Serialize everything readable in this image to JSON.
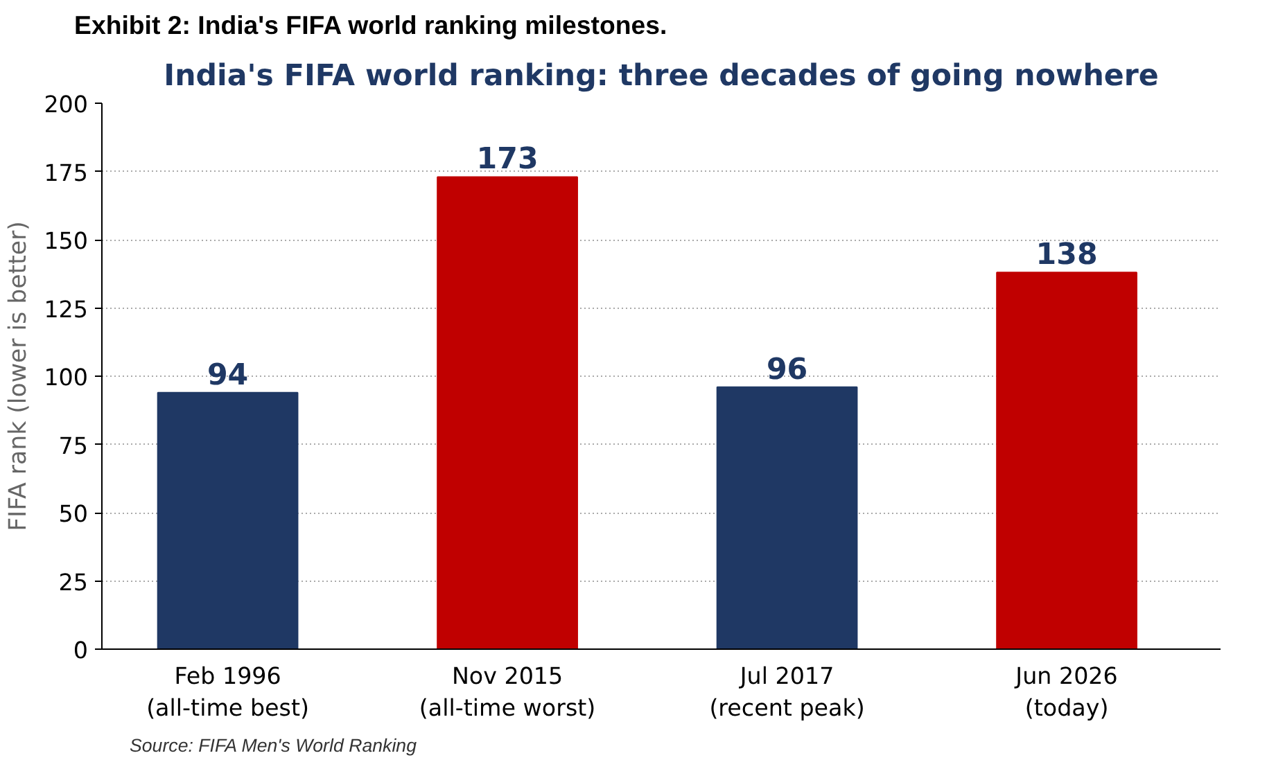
{
  "chart_data": {
    "type": "bar",
    "title": "India's FIFA world ranking: three decades of going nowhere",
    "ylabel": "FIFA rank (lower is better)",
    "annotations": [
      "Exhibit 2: India's FIFA world ranking milestones.",
      "Source: FIFA Men's World Ranking"
    ],
    "categories": [
      "Feb 1996\n(all-time best)",
      "Nov 2015\n(all-time worst)",
      "Jul 2017\n(recent peak)",
      "Jun 2026\n(today)"
    ],
    "values": [
      94,
      173,
      96,
      138
    ],
    "colors": [
      "#1f3864",
      "#c00000",
      "#1f3864",
      "#c00000"
    ],
    "ylim": [
      0,
      200
    ],
    "yticks": [
      0,
      25,
      50,
      75,
      100,
      125,
      150,
      175,
      200
    ],
    "grid": "y",
    "data_labels": true
  }
}
